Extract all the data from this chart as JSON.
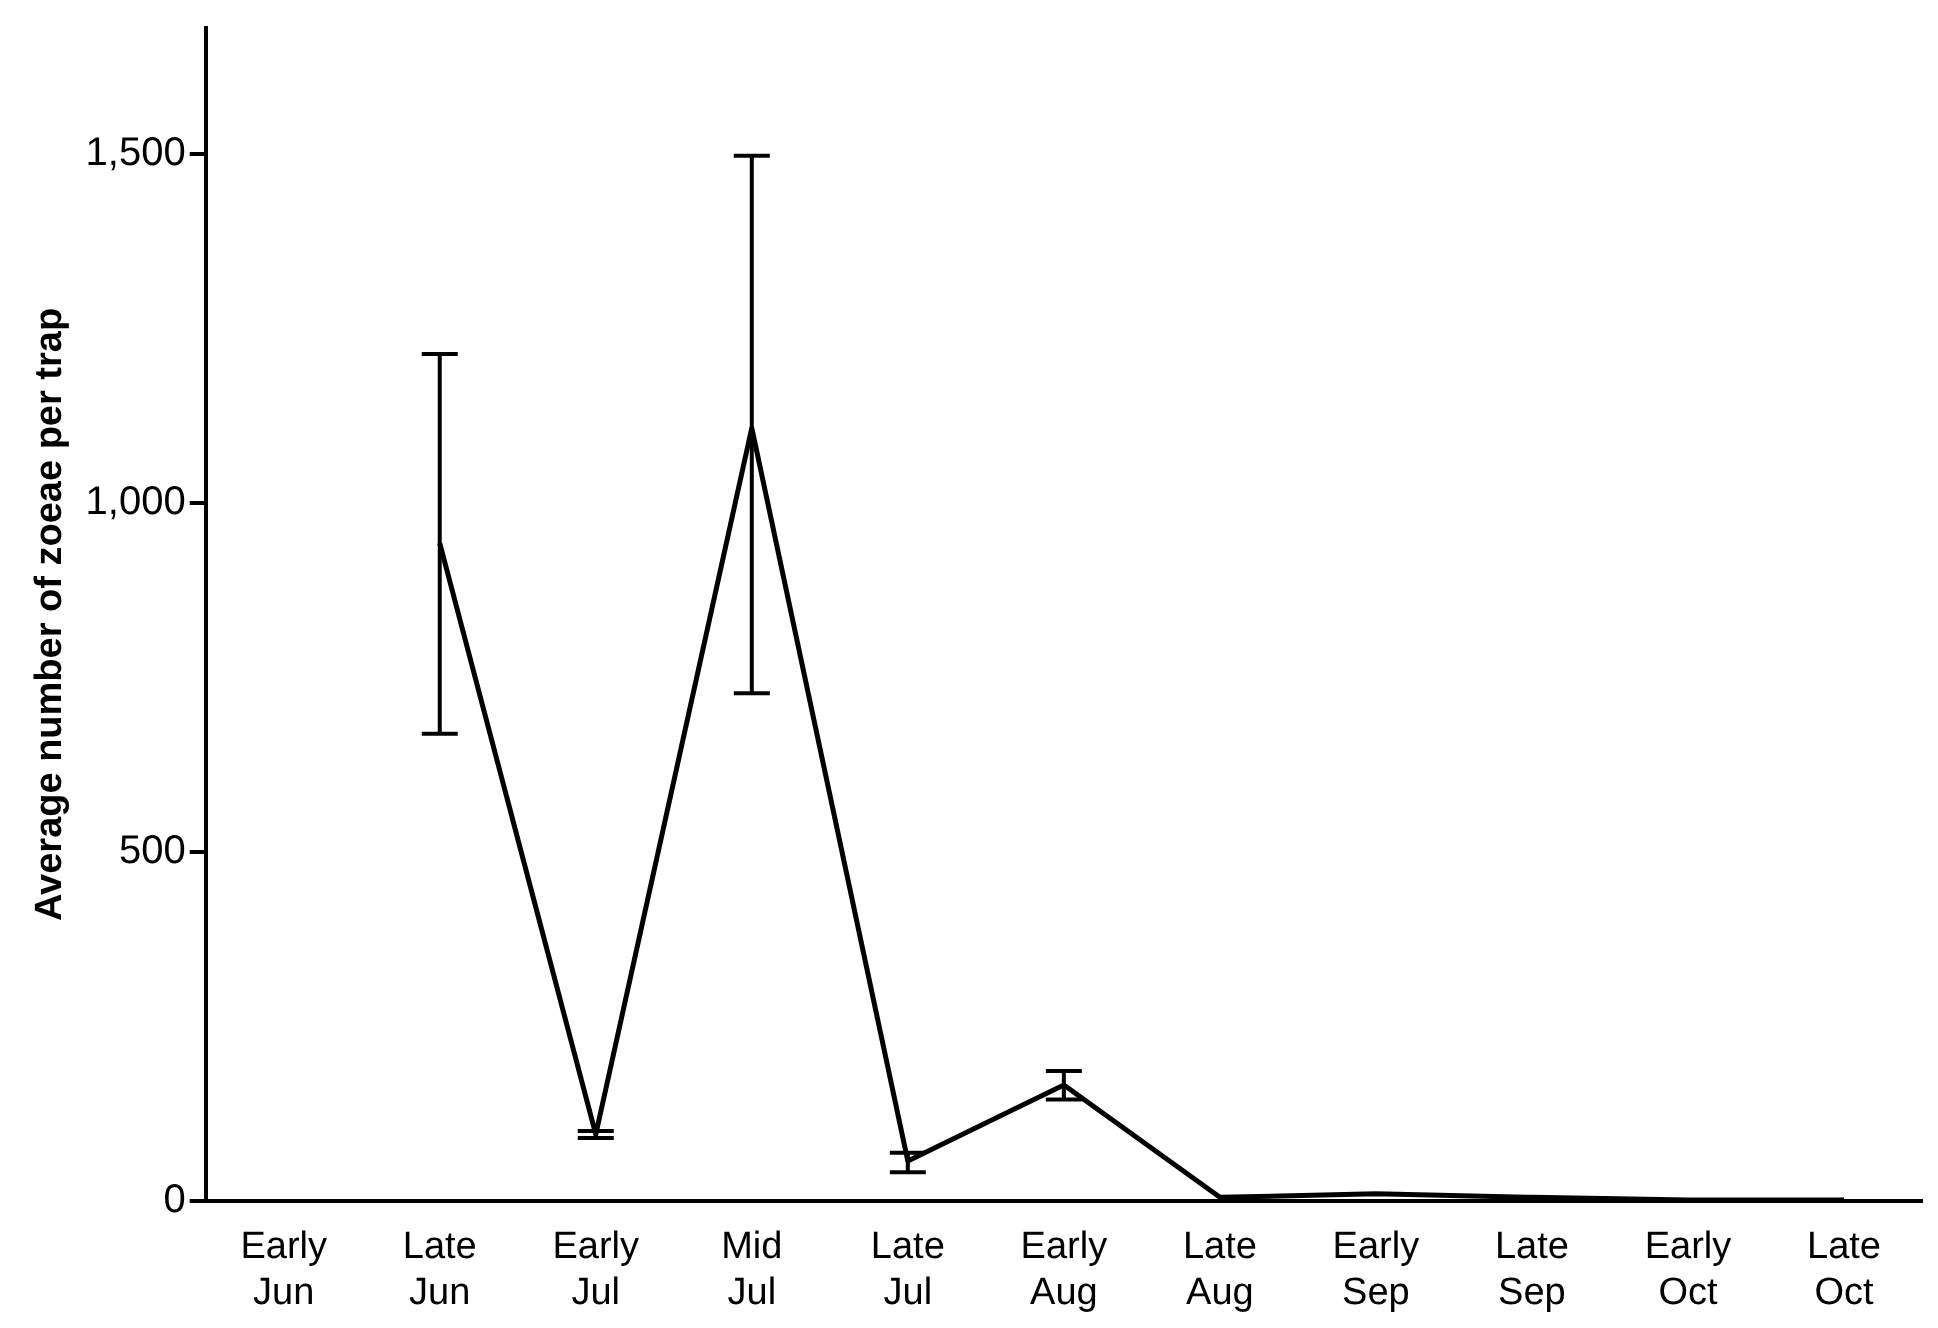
{
  "chart_data": {
    "type": "line",
    "ylabel": "Average number of zoeae per trap",
    "categories": [
      "Early Jun",
      "Late Jun",
      "Early Jul",
      "Mid Jul",
      "Late Jul",
      "Early Aug",
      "Late Aug",
      "Early Sep",
      "Late Sep",
      "Early Oct",
      "Late Oct"
    ],
    "series": [
      {
        "color": "#000000",
        "values": [
          null,
          942,
          95,
          1107,
          57,
          166,
          5,
          10,
          5,
          1,
          1
        ],
        "errors": [
          null,
          [
            669,
            1213
          ],
          [
            90,
            100
          ],
          [
            727,
            1497
          ],
          [
            41,
            69
          ],
          [
            145,
            186
          ],
          null,
          null,
          null,
          null,
          null
        ]
      }
    ],
    "ylim": [
      0,
      1680
    ],
    "yticks": [
      0,
      500,
      {
        "value": 1000,
        "label": "1,000"
      },
      {
        "value": 1500,
        "label": "1,500"
      }
    ],
    "marker": "none",
    "line_style": "solid",
    "legend": false,
    "grid": false
  }
}
